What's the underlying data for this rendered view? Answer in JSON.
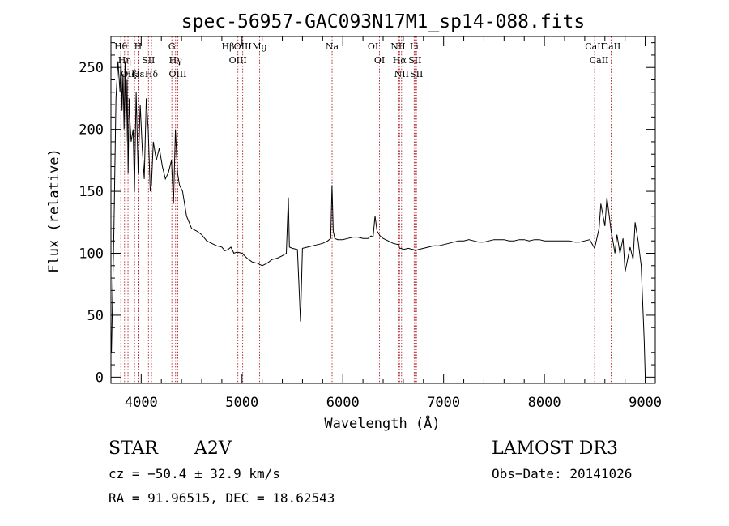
{
  "chart_data": {
    "type": "line",
    "title": "spec-56957-GAC093N17M1_sp14-088.fits",
    "xlabel": "Wavelength (Å)",
    "ylabel": "Flux (relative)",
    "xlim": [
      3700,
      9100
    ],
    "ylim": [
      -5,
      275
    ],
    "xticks": [
      4000,
      5000,
      6000,
      7000,
      8000,
      9000
    ],
    "yticks": [
      0,
      50,
      100,
      150,
      200,
      250
    ],
    "grid": false,
    "series": [
      {
        "x": [
          3705,
          3730,
          3750,
          3770,
          3790,
          3800,
          3810,
          3820,
          3830,
          3840,
          3850,
          3860,
          3870,
          3880,
          3890,
          3900,
          3920,
          3933,
          3950,
          3970,
          3990,
          4010,
          4030,
          4050,
          4070,
          4090,
          4102,
          4120,
          4150,
          4180,
          4210,
          4240,
          4270,
          4300,
          4320,
          4340,
          4360,
          4380,
          4410,
          4450,
          4500,
          4550,
          4600,
          4650,
          4700,
          4750,
          4800,
          4830,
          4861,
          4890,
          4920,
          4950,
          5000,
          5050,
          5100,
          5150,
          5200,
          5250,
          5300,
          5350,
          5400,
          5440,
          5460,
          5470,
          5500,
          5550,
          5580,
          5600,
          5650,
          5700,
          5750,
          5800,
          5850,
          5880,
          5893,
          5905,
          5920,
          5950,
          6000,
          6050,
          6100,
          6150,
          6200,
          6250,
          6280,
          6300,
          6320,
          6340,
          6370,
          6400,
          6450,
          6500,
          6550,
          6563,
          6580,
          6600,
          6650,
          6700,
          6720,
          6750,
          6800,
          6850,
          6900,
          6950,
          7000,
          7050,
          7100,
          7150,
          7200,
          7250,
          7300,
          7350,
          7400,
          7450,
          7500,
          7550,
          7600,
          7650,
          7700,
          7750,
          7800,
          7850,
          7900,
          7950,
          8000,
          8050,
          8100,
          8150,
          8200,
          8250,
          8300,
          8350,
          8400,
          8450,
          8498,
          8542,
          8560,
          8600,
          8620,
          8662,
          8680,
          8700,
          8720,
          8750,
          8780,
          8800,
          8850,
          8880,
          8900,
          8930,
          8960,
          8990,
          9000
        ],
        "y": [
          20,
          120,
          225,
          255,
          230,
          260,
          215,
          245,
          200,
          255,
          190,
          240,
          165,
          225,
          205,
          190,
          200,
          150,
          230,
          165,
          220,
          185,
          160,
          225,
          200,
          150,
          155,
          190,
          175,
          185,
          170,
          160,
          165,
          175,
          140,
          200,
          165,
          155,
          150,
          130,
          120,
          118,
          115,
          110,
          108,
          106,
          105,
          102,
          103,
          105,
          100,
          101,
          100,
          96,
          93,
          92,
          90,
          92,
          95,
          96,
          98,
          100,
          145,
          105,
          104,
          103,
          45,
          104,
          105,
          106,
          107,
          108,
          110,
          112,
          155,
          118,
          112,
          111,
          111,
          112,
          113,
          113,
          112,
          112,
          114,
          113,
          130,
          118,
          114,
          112,
          110,
          108,
          107,
          104,
          104,
          103,
          104,
          103,
          102,
          103,
          104,
          105,
          106,
          106,
          107,
          108,
          109,
          110,
          110,
          111,
          110,
          109,
          109,
          110,
          111,
          111,
          111,
          110,
          110,
          111,
          111,
          110,
          111,
          111,
          110,
          110,
          110,
          110,
          110,
          110,
          109,
          109,
          110,
          111,
          104,
          120,
          140,
          122,
          145,
          118,
          110,
          100,
          115,
          100,
          112,
          85,
          105,
          95,
          125,
          110,
          90,
          30,
          0
        ]
      }
    ],
    "lines": [
      {
        "lam": 3798,
        "label": "Hθ"
      },
      {
        "lam": 3835,
        "label": "Hη"
      },
      {
        "lam": 3869,
        "label": "OII"
      },
      {
        "lam": 3889,
        "label": "Hζ"
      },
      {
        "lam": 3934,
        "label": "K"
      },
      {
        "lam": 3969,
        "label": "H"
      },
      {
        "lam": 3970,
        "label": "Hε"
      },
      {
        "lam": 4072,
        "label": "SII"
      },
      {
        "lam": 4102,
        "label": "Hδ"
      },
      {
        "lam": 4304,
        "label": "G"
      },
      {
        "lam": 4341,
        "label": "Hγ"
      },
      {
        "lam": 4363,
        "label": "OIII"
      },
      {
        "lam": 4861,
        "label": "Hβ"
      },
      {
        "lam": 4959,
        "label": "OIII"
      },
      {
        "lam": 5007,
        "label": "OIII"
      },
      {
        "lam": 5175,
        "label": "Mg"
      },
      {
        "lam": 5894,
        "label": "Na"
      },
      {
        "lam": 6300,
        "label": "OI"
      },
      {
        "lam": 6364,
        "label": "OI"
      },
      {
        "lam": 6548,
        "label": "NII"
      },
      {
        "lam": 6563,
        "label": "Hα"
      },
      {
        "lam": 6583,
        "label": "NII"
      },
      {
        "lam": 6708,
        "label": "Li"
      },
      {
        "lam": 6716,
        "label": "SII"
      },
      {
        "lam": 6731,
        "label": "SII"
      },
      {
        "lam": 8498,
        "label": "CaII"
      },
      {
        "lam": 8542,
        "label": "CaII"
      },
      {
        "lam": 8662,
        "label": "CaII"
      }
    ]
  },
  "info": {
    "class_label": "STAR",
    "subclass": "A2V",
    "survey": "LAMOST DR3",
    "cz": "cz = −50.4 ± 32.9 km/s",
    "obs_date": "Obs−Date: 20141026",
    "coords": "RA =  91.96515, DEC =  18.62543"
  }
}
